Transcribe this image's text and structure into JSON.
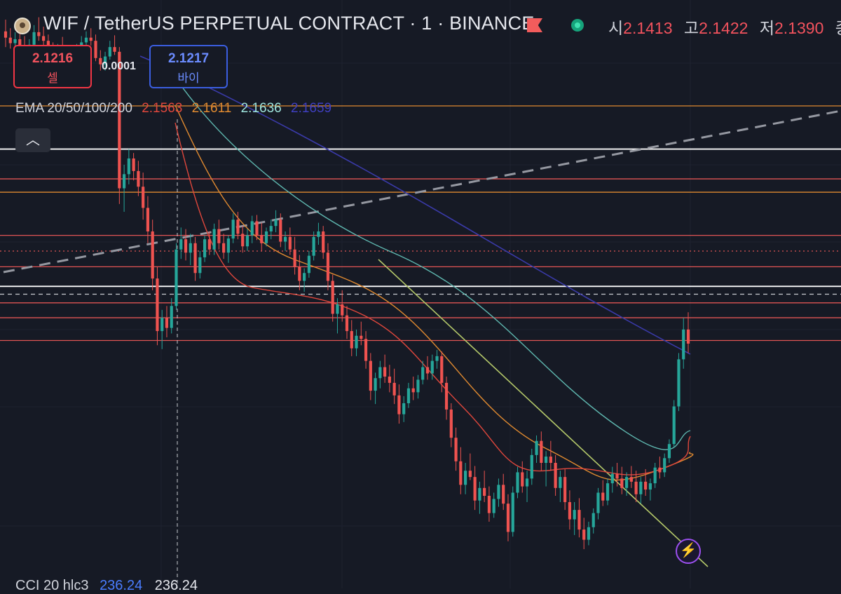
{
  "header": {
    "title": "WIF / TetherUS PERPETUAL CONTRACT · 1 · BINANCE",
    "open_label": "시",
    "open_value": "2.1413",
    "high_label": "고",
    "high_value": "2.1422",
    "low_label": "저",
    "low_value": "2.1390",
    "close_label": "종"
  },
  "trade": {
    "sell_price": "2.1216",
    "sell_label": "셀",
    "spread": "0.0001",
    "buy_price": "2.1217",
    "buy_label": "바이"
  },
  "indicator": {
    "ema_label": "EMA 20/50/100/200",
    "ema20": "2.1563",
    "ema50": "2.1611",
    "ema100": "2.1636",
    "ema200": "2.1659",
    "cci_label": "CCI 20 hlc3",
    "cci_value_a": "236.24",
    "cci_value_b": "236.24"
  },
  "icons": [
    "coin-logo-icon",
    "red-flag-icon",
    "market-status-dot-icon",
    "chevron-up-icon",
    "lightning-icon"
  ],
  "colors": {
    "background": "#161a25",
    "up": "#26a69a",
    "down": "#ef5350",
    "ema20": "#e0473c",
    "ema50": "#e08a30",
    "ema100": "#5fb8b0",
    "ema200": "#3a3aa8"
  },
  "chart_data": {
    "type": "candlestick",
    "symbol": "WIFUSDT.P",
    "interval": "1",
    "price_scale": [
      2.1,
      2.175
    ],
    "candles_ohlc": [
      [
        2.171,
        2.1725,
        2.169,
        2.1702
      ],
      [
        2.1702,
        2.1714,
        2.1688,
        2.1695
      ],
      [
        2.1695,
        2.1709,
        2.168,
        2.17
      ],
      [
        2.17,
        2.1713,
        2.1685,
        2.169
      ],
      [
        2.169,
        2.1704,
        2.1676,
        2.1684
      ],
      [
        2.1684,
        2.17,
        2.1672,
        2.1693
      ],
      [
        2.1693,
        2.1718,
        2.1688,
        2.1709
      ],
      [
        2.1709,
        2.1728,
        2.1698,
        2.1704
      ],
      [
        2.1704,
        2.1716,
        2.169,
        2.1698
      ],
      [
        2.1698,
        2.1706,
        2.1678,
        2.1688
      ],
      [
        2.1688,
        2.1696,
        2.167,
        2.1679
      ],
      [
        2.1679,
        2.1694,
        2.1666,
        2.1689
      ],
      [
        2.1689,
        2.1703,
        2.1674,
        2.1681
      ],
      [
        2.1681,
        2.169,
        2.166,
        2.1668
      ],
      [
        2.1668,
        2.1686,
        2.1658,
        2.1675
      ],
      [
        2.1675,
        2.1694,
        2.1668,
        2.1689
      ],
      [
        2.1689,
        2.1704,
        2.1678,
        2.1696
      ],
      [
        2.1696,
        2.171,
        2.1684,
        2.1702
      ],
      [
        2.1702,
        2.1714,
        2.1692,
        2.1698
      ],
      [
        2.1698,
        2.1706,
        2.1672,
        2.1676
      ],
      [
        2.1676,
        2.1686,
        2.166,
        2.1668
      ],
      [
        2.1668,
        2.1684,
        2.166,
        2.1678
      ],
      [
        2.1678,
        2.1698,
        2.1674,
        2.169
      ],
      [
        2.169,
        2.1705,
        2.168,
        2.1684
      ],
      [
        2.1684,
        2.169,
        2.149,
        2.151
      ],
      [
        2.151,
        2.154,
        2.148,
        2.1528
      ],
      [
        2.1528,
        2.156,
        2.1515,
        2.1548
      ],
      [
        2.1548,
        2.1555,
        2.152,
        2.1532
      ],
      [
        2.1532,
        2.1545,
        2.15,
        2.1512
      ],
      [
        2.1512,
        2.153,
        2.147,
        2.1485
      ],
      [
        2.1485,
        2.15,
        2.144,
        2.1455
      ],
      [
        2.1455,
        2.147,
        2.138,
        2.1395
      ],
      [
        2.1395,
        2.141,
        2.131,
        2.1328
      ],
      [
        2.1328,
        2.1355,
        2.1305,
        2.1345
      ],
      [
        2.1345,
        2.136,
        2.132,
        2.1332
      ],
      [
        2.1332,
        2.137,
        2.1325,
        2.136
      ],
      [
        2.136,
        2.144,
        2.1355,
        2.1432
      ],
      [
        2.1432,
        2.146,
        2.142,
        2.1445
      ],
      [
        2.1445,
        2.1458,
        2.1418,
        2.1428
      ],
      [
        2.1428,
        2.1452,
        2.1412,
        2.144
      ],
      [
        2.144,
        2.1448,
        2.1392,
        2.1402
      ],
      [
        2.1402,
        2.143,
        2.1395,
        2.1422
      ],
      [
        2.1422,
        2.145,
        2.1416,
        2.1445
      ],
      [
        2.1445,
        2.1455,
        2.1425,
        2.1432
      ],
      [
        2.1432,
        2.1465,
        2.1425,
        2.1458
      ],
      [
        2.1458,
        2.147,
        2.1432,
        2.144
      ],
      [
        2.144,
        2.1452,
        2.142,
        2.1428
      ],
      [
        2.1428,
        2.145,
        2.1415,
        2.1446
      ],
      [
        2.1446,
        2.1478,
        2.144,
        2.147
      ],
      [
        2.147,
        2.148,
        2.1445,
        2.1452
      ],
      [
        2.1452,
        2.1462,
        2.1428,
        2.1436
      ],
      [
        2.1436,
        2.1458,
        2.143,
        2.145
      ],
      [
        2.145,
        2.1475,
        2.144,
        2.1468
      ],
      [
        2.1468,
        2.1476,
        2.1444,
        2.145
      ],
      [
        2.145,
        2.1466,
        2.143,
        2.144
      ],
      [
        2.144,
        2.146,
        2.1436,
        2.1455
      ],
      [
        2.1455,
        2.147,
        2.1445,
        2.1462
      ],
      [
        2.1462,
        2.1482,
        2.1454,
        2.147
      ],
      [
        2.147,
        2.1478,
        2.1435,
        2.1442
      ],
      [
        2.1442,
        2.1455,
        2.143,
        2.1448
      ],
      [
        2.1448,
        2.146,
        2.1425,
        2.1432
      ],
      [
        2.1432,
        2.1448,
        2.14,
        2.141
      ],
      [
        2.141,
        2.1425,
        2.138,
        2.1392
      ],
      [
        2.1392,
        2.1408,
        2.1378,
        2.1402
      ],
      [
        2.1402,
        2.143,
        2.1396,
        2.1424
      ],
      [
        2.1424,
        2.1455,
        2.1418,
        2.1448
      ],
      [
        2.1448,
        2.1466,
        2.1438,
        2.1455
      ],
      [
        2.1455,
        2.1462,
        2.142,
        2.1428
      ],
      [
        2.1428,
        2.144,
        2.138,
        2.1392
      ],
      [
        2.1392,
        2.14,
        2.134,
        2.135
      ],
      [
        2.135,
        2.137,
        2.1325,
        2.1362
      ],
      [
        2.1362,
        2.138,
        2.134,
        2.1348
      ],
      [
        2.1348,
        2.136,
        2.1318,
        2.1328
      ],
      [
        2.1328,
        2.1342,
        2.1296,
        2.1306
      ],
      [
        2.1306,
        2.133,
        2.1296,
        2.1322
      ],
      [
        2.1322,
        2.134,
        2.131,
        2.1318
      ],
      [
        2.1318,
        2.1328,
        2.128,
        2.129
      ],
      [
        2.129,
        2.13,
        2.124,
        2.1252
      ],
      [
        2.1252,
        2.1275,
        2.1235,
        2.1268
      ],
      [
        2.1268,
        2.129,
        2.1255,
        2.1282
      ],
      [
        2.1282,
        2.1298,
        2.1262,
        2.127
      ],
      [
        2.127,
        2.1285,
        2.125,
        2.1262
      ],
      [
        2.1262,
        2.128,
        2.1235,
        2.1246
      ],
      [
        2.1246,
        2.126,
        2.121,
        2.1222
      ],
      [
        2.1222,
        2.1245,
        2.1212,
        2.1236
      ],
      [
        2.1236,
        2.1262,
        2.123,
        2.1255
      ],
      [
        2.1255,
        2.127,
        2.124,
        2.125
      ],
      [
        2.125,
        2.1272,
        2.1242,
        2.1266
      ],
      [
        2.1266,
        2.129,
        2.126,
        2.1282
      ],
      [
        2.1282,
        2.1296,
        2.1266,
        2.1274
      ],
      [
        2.1274,
        2.1298,
        2.1266,
        2.129
      ],
      [
        2.129,
        2.1304,
        2.128,
        2.1296
      ],
      [
        2.1296,
        2.1302,
        2.125,
        2.1262
      ],
      [
        2.1262,
        2.127,
        2.1215,
        2.1228
      ],
      [
        2.1228,
        2.1236,
        2.118,
        2.1192
      ],
      [
        2.1192,
        2.1205,
        2.115,
        2.1162
      ],
      [
        2.1162,
        2.118,
        2.112,
        2.1132
      ],
      [
        2.1132,
        2.116,
        2.112,
        2.115
      ],
      [
        2.115,
        2.1172,
        2.1138,
        2.1142
      ],
      [
        2.1142,
        2.1156,
        2.11,
        2.1112
      ],
      [
        2.1112,
        2.1136,
        2.1095,
        2.1128
      ],
      [
        2.1128,
        2.115,
        2.111,
        2.1118
      ],
      [
        2.1118,
        2.113,
        2.1085,
        2.1096
      ],
      [
        2.1096,
        2.1122,
        2.109,
        2.1114
      ],
      [
        2.1114,
        2.114,
        2.1104,
        2.1132
      ],
      [
        2.1132,
        2.1146,
        2.11,
        2.1108
      ],
      [
        2.1108,
        2.112,
        2.106,
        2.1072
      ],
      [
        2.1072,
        2.113,
        2.1066,
        2.1122
      ],
      [
        2.1122,
        2.1155,
        2.1115,
        2.1148
      ],
      [
        2.1148,
        2.1162,
        2.1122,
        2.113
      ],
      [
        2.113,
        2.115,
        2.111,
        2.114
      ],
      [
        2.114,
        2.1178,
        2.1132,
        2.117
      ],
      [
        2.117,
        2.1195,
        2.116,
        2.1188
      ],
      [
        2.1188,
        2.12,
        2.115,
        2.116
      ],
      [
        2.116,
        2.1175,
        2.113,
        2.1168
      ],
      [
        2.1168,
        2.1188,
        2.115,
        2.116
      ],
      [
        2.116,
        2.117,
        2.1118,
        2.1128
      ],
      [
        2.1128,
        2.115,
        2.111,
        2.1142
      ],
      [
        2.1142,
        2.1152,
        2.11,
        2.111
      ],
      [
        2.111,
        2.1125,
        2.1075,
        2.1088
      ],
      [
        2.1088,
        2.111,
        2.1068,
        2.11
      ],
      [
        2.11,
        2.1115,
        2.1065,
        2.1075
      ],
      [
        2.1075,
        2.109,
        2.105,
        2.1062
      ],
      [
        2.1062,
        2.1085,
        2.1055,
        2.1078
      ],
      [
        2.1078,
        2.1102,
        2.107,
        2.1096
      ],
      [
        2.1096,
        2.1128,
        2.1088,
        2.1122
      ],
      [
        2.1122,
        2.1138,
        2.1105,
        2.1112
      ],
      [
        2.1112,
        2.114,
        2.1106,
        2.1134
      ],
      [
        2.1134,
        2.1155,
        2.1122,
        2.1146
      ],
      [
        2.1146,
        2.116,
        2.113,
        2.114
      ],
      [
        2.114,
        2.1155,
        2.112,
        2.1128
      ],
      [
        2.1128,
        2.1148,
        2.1118,
        2.1142
      ],
      [
        2.1142,
        2.1156,
        2.1128,
        2.1136
      ],
      [
        2.1136,
        2.115,
        2.111,
        2.112
      ],
      [
        2.112,
        2.1142,
        2.1108,
        2.1136
      ],
      [
        2.1136,
        2.1152,
        2.1118,
        2.1126
      ],
      [
        2.1126,
        2.114,
        2.1112,
        2.1134
      ],
      [
        2.1134,
        2.116,
        2.1128,
        2.1154
      ],
      [
        2.1154,
        2.1168,
        2.114,
        2.1148
      ],
      [
        2.1148,
        2.1172,
        2.1142,
        2.1166
      ],
      [
        2.1166,
        2.119,
        2.116,
        2.1184
      ],
      [
        2.1184,
        2.124,
        2.118,
        2.1232
      ],
      [
        2.1232,
        2.13,
        2.1226,
        2.1292
      ],
      [
        2.1292,
        2.1345,
        2.128,
        2.133
      ],
      [
        2.133,
        2.1352,
        2.13,
        2.1312
      ]
    ],
    "ema_lines": [
      {
        "name": "EMA 20",
        "last": 2.1563
      },
      {
        "name": "EMA 50",
        "last": 2.1611
      },
      {
        "name": "EMA 100",
        "last": 2.1636
      },
      {
        "name": "EMA 200",
        "last": 2.1659
      }
    ],
    "horizontal_levels": [
      {
        "price": 2.1615,
        "color": "#e08a30"
      },
      {
        "price": 2.156,
        "color": "#ffffff"
      },
      {
        "price": 2.1522,
        "color": "#e05454"
      },
      {
        "price": 2.1505,
        "color": "#e08a30"
      },
      {
        "price": 2.145,
        "color": "#e05454"
      },
      {
        "price": 2.141,
        "color": "#e05454"
      },
      {
        "price": 2.1385,
        "color": "#ffffff"
      },
      {
        "price": 2.1364,
        "color": "#e05454"
      },
      {
        "price": 2.1345,
        "color": "#e05454"
      },
      {
        "price": 2.1316,
        "color": "#e05454"
      }
    ],
    "current_price_line": 2.143,
    "crosshair_price": 2.1375
  }
}
